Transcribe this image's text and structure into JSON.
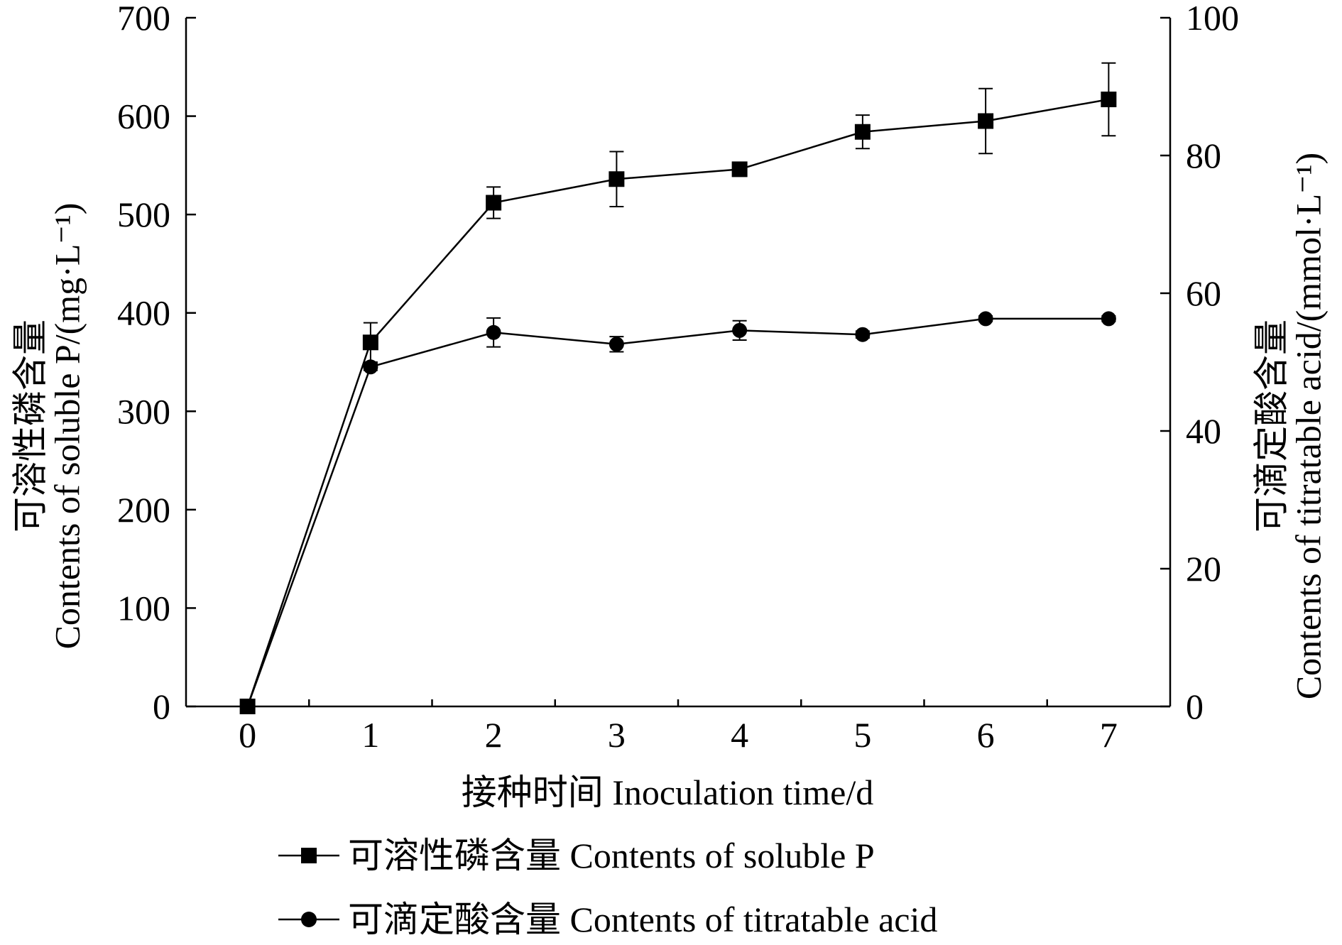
{
  "chart_data": {
    "type": "line",
    "xlabel": "接种时间  Inoculation time/d",
    "ylabel_left_cn": "可溶性磷含量",
    "ylabel_left_en": "Contents of soluble P/(mg·L⁻¹)",
    "ylabel_right_cn": "可滴定酸含量",
    "ylabel_right_en": "Contents of titratable acid/(mmol·L⁻¹)",
    "xlim": [
      -0.5,
      7.5
    ],
    "ylim_left": [
      0,
      700
    ],
    "ylim_right": [
      0,
      100
    ],
    "x_ticks": [
      0,
      1,
      2,
      3,
      4,
      5,
      6,
      7
    ],
    "y_ticks_left": [
      0,
      100,
      200,
      300,
      400,
      500,
      600,
      700
    ],
    "y_ticks_right": [
      0,
      20,
      40,
      60,
      80,
      100
    ],
    "grid": false,
    "legend_position": "bottom",
    "series": [
      {
        "name": "可溶性磷含量  Contents of soluble P",
        "axis": "left",
        "marker": "square",
        "x": [
          0,
          1,
          2,
          3,
          4,
          5,
          6,
          7
        ],
        "y": [
          0,
          370,
          512,
          536,
          546,
          584,
          595,
          617
        ],
        "err": [
          0,
          20,
          16,
          28,
          5,
          17,
          33,
          37
        ]
      },
      {
        "name": "可滴定酸含量  Contents of titratable acid",
        "axis": "right",
        "marker": "circle",
        "x": [
          0,
          1,
          2,
          3,
          4,
          5,
          6,
          7
        ],
        "y": [
          0,
          49.3,
          54.3,
          52.6,
          54.6,
          54.0,
          56.3,
          56.3
        ],
        "err": [
          0,
          0.5,
          2.1,
          1.1,
          1.4,
          0.5,
          0.4,
          0.4
        ]
      }
    ]
  }
}
